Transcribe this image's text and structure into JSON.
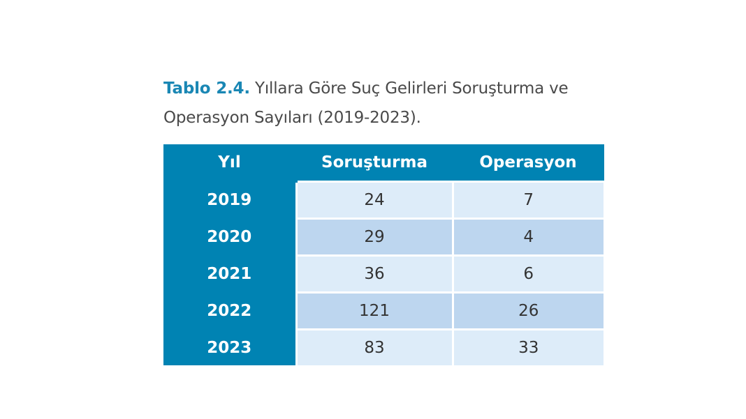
{
  "caption": {
    "label": "Tablo 2.4.",
    "text": "Yıllara Göre Suç Gelirleri Soruşturma ve Operasyon Sayıları (2019-2023)."
  },
  "table": {
    "headers": [
      "Yıl",
      "Soruşturma",
      "Operasyon"
    ],
    "rows": [
      [
        "2019",
        "24",
        "7"
      ],
      [
        "2020",
        "29",
        "4"
      ],
      [
        "2021",
        "36",
        "6"
      ],
      [
        "2022",
        "121",
        "26"
      ],
      [
        "2023",
        "83",
        "33"
      ]
    ]
  },
  "colors": {
    "header": "#0083b3",
    "label": "#1a87b4",
    "row_light": "#ddecf9",
    "row_dark": "#bdd6ef"
  }
}
